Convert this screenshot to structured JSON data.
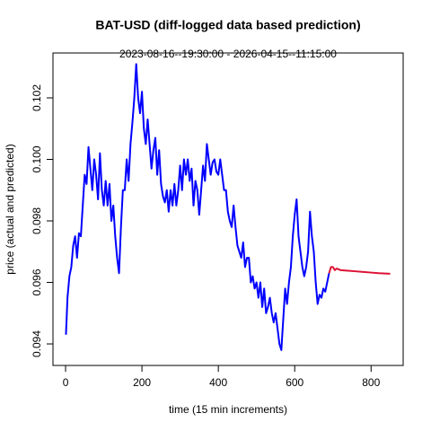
{
  "chart_data": {
    "type": "line",
    "title": "BAT-USD (diff-logged data based prediction)",
    "subtitle": "2023-08-16--19:30:00  -  2026-04-15--11:15:00",
    "x_label": "time (15 min increments)",
    "y_label": "price (actual and predicted)",
    "xlim": [
      -33,
      884
    ],
    "ylim": [
      0.0933,
      0.10346
    ],
    "xticks": [
      0,
      200,
      400,
      600,
      800
    ],
    "yticks": [
      0.094,
      0.096,
      0.098,
      {
        "value": 0.1,
        "label": "0.100"
      },
      0.102
    ],
    "series": [
      {
        "color": "#0000ff",
        "x": [
          1,
          5,
          10,
          15,
          20,
          25,
          30,
          35,
          40,
          45,
          50,
          55,
          60,
          65,
          70,
          75,
          80,
          85,
          90,
          95,
          100,
          105,
          110,
          115,
          120,
          125,
          130,
          135,
          140,
          145,
          150,
          155,
          160,
          165,
          170,
          175,
          180,
          185,
          190,
          195,
          200,
          205,
          210,
          215,
          220,
          225,
          230,
          235,
          240,
          245,
          250,
          255,
          260,
          265,
          270,
          275,
          280,
          285,
          290,
          295,
          300,
          305,
          310,
          315,
          320,
          325,
          330,
          335,
          340,
          345,
          350,
          355,
          360,
          365,
          370,
          375,
          380,
          385,
          390,
          395,
          400,
          405,
          410,
          415,
          420,
          425,
          430,
          435,
          440,
          445,
          450,
          455,
          460,
          465,
          470,
          475,
          480,
          485,
          490,
          495,
          500,
          505,
          510,
          515,
          520,
          525,
          530,
          535,
          540,
          545,
          550,
          555,
          560,
          565,
          570,
          575,
          580,
          585,
          590,
          595,
          600,
          605,
          610,
          615,
          620,
          625,
          630,
          635,
          640,
          645,
          650,
          655,
          660,
          665,
          670,
          675,
          680,
          685,
          690
        ],
        "values": [
          0.0943,
          0.0955,
          0.0962,
          0.0965,
          0.0972,
          0.0975,
          0.0968,
          0.0976,
          0.0975,
          0.0985,
          0.0995,
          0.0992,
          0.1004,
          0.0997,
          0.099,
          0.1,
          0.0995,
          0.0987,
          0.1002,
          0.099,
          0.0985,
          0.0993,
          0.0985,
          0.0992,
          0.098,
          0.0985,
          0.0975,
          0.0968,
          0.0963,
          0.0978,
          0.099,
          0.099,
          0.1,
          0.0993,
          0.1005,
          0.1012,
          0.102,
          0.1031,
          0.102,
          0.1015,
          0.1022,
          0.101,
          0.1005,
          0.1013,
          0.1005,
          0.0997,
          0.1003,
          0.1007,
          0.0995,
          0.1003,
          0.0992,
          0.0988,
          0.0986,
          0.099,
          0.0983,
          0.099,
          0.0985,
          0.0992,
          0.0985,
          0.099,
          0.0998,
          0.099,
          0.1,
          0.0995,
          0.1,
          0.0993,
          0.0997,
          0.0985,
          0.0993,
          0.099,
          0.0982,
          0.099,
          0.0998,
          0.0993,
          0.1005,
          0.1,
          0.0995,
          0.0999,
          0.1,
          0.0996,
          0.0995,
          0.1,
          0.0995,
          0.099,
          0.099,
          0.0983,
          0.098,
          0.0978,
          0.0985,
          0.0978,
          0.0972,
          0.097,
          0.0968,
          0.0973,
          0.0965,
          0.0968,
          0.0968,
          0.096,
          0.0962,
          0.0958,
          0.096,
          0.0955,
          0.096,
          0.0952,
          0.0958,
          0.095,
          0.0952,
          0.0955,
          0.095,
          0.0947,
          0.095,
          0.0945,
          0.094,
          0.0938,
          0.0948,
          0.0958,
          0.0953,
          0.096,
          0.0965,
          0.0975,
          0.0982,
          0.0987,
          0.0975,
          0.097,
          0.0965,
          0.0962,
          0.0965,
          0.097,
          0.0983,
          0.0975,
          0.097,
          0.096,
          0.0953,
          0.0956,
          0.0955,
          0.0958,
          0.0957,
          0.096,
          0.0963
        ]
      },
      {
        "color": "#dd1133",
        "x": [
          690,
          695,
          700,
          705,
          710,
          720,
          740,
          760,
          780,
          800,
          820,
          850
        ],
        "values": [
          0.0963,
          0.0965,
          0.0965,
          0.0964,
          0.09645,
          0.0964,
          0.09638,
          0.09636,
          0.09634,
          0.09632,
          0.0963,
          0.09628
        ]
      }
    ]
  }
}
